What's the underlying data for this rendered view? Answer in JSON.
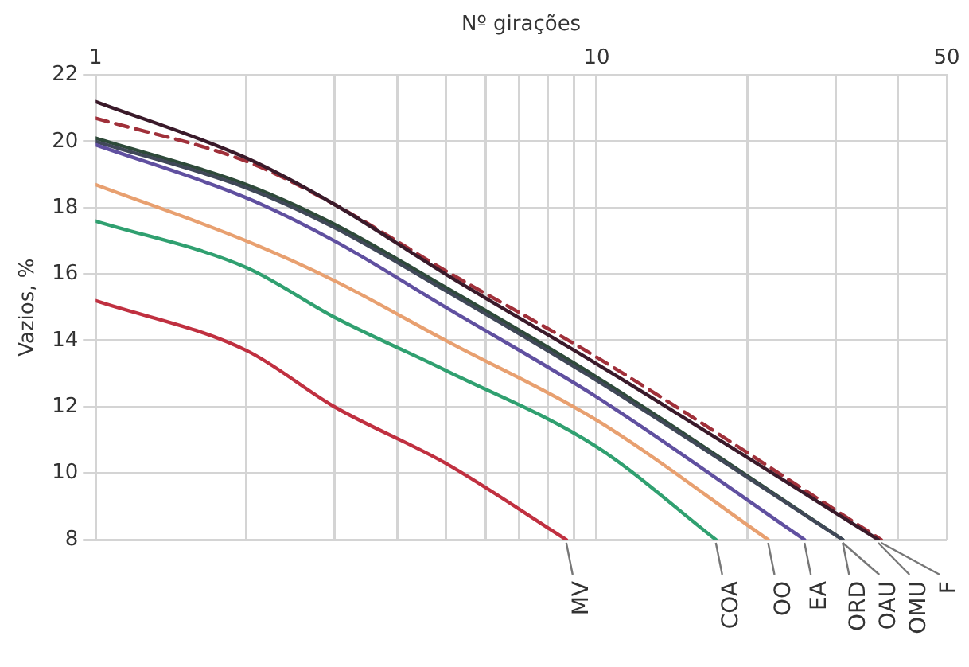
{
  "chart_data": {
    "type": "line",
    "xlabel": "Nº girações",
    "ylabel": "Vazios, %",
    "log": "x",
    "xlim": [
      1,
      50
    ],
    "ylim": [
      8,
      22
    ],
    "xticks": [
      1,
      {
        "value": 2,
        "label": null
      },
      {
        "value": 3,
        "label": null
      },
      {
        "value": 4,
        "label": null
      },
      {
        "value": 5,
        "label": null
      },
      {
        "value": 6,
        "label": null
      },
      {
        "value": 7,
        "label": null
      },
      {
        "value": 8,
        "label": null
      },
      {
        "value": 9,
        "label": null
      },
      10,
      {
        "value": 20,
        "label": null
      },
      {
        "value": 30,
        "label": null
      },
      {
        "value": 40,
        "label": null
      },
      50
    ],
    "yticks": [
      8,
      10,
      12,
      14,
      16,
      18,
      20,
      22
    ],
    "grid": true,
    "legend": false,
    "marker": "none",
    "line_style": "solid",
    "series": [
      {
        "name": "MV",
        "color": "#c03040",
        "x": [
          1,
          2,
          3,
          5,
          8.7
        ],
        "values": [
          15.2,
          13.7,
          12.0,
          10.3,
          8
        ]
      },
      {
        "name": "COA",
        "color": "#30a070",
        "x": [
          1,
          2,
          3,
          5,
          10,
          17.3
        ],
        "values": [
          17.6,
          16.2,
          14.7,
          13.1,
          10.8,
          8
        ]
      },
      {
        "name": "OO",
        "color": "#e8a070",
        "x": [
          1,
          2,
          3,
          5,
          10,
          22
        ],
        "values": [
          18.7,
          17.0,
          15.8,
          14.0,
          11.6,
          8
        ]
      },
      {
        "name": "EA",
        "color": "#6050a0",
        "x": [
          1,
          2,
          3,
          5,
          10,
          26
        ],
        "values": [
          19.9,
          18.3,
          17.0,
          15.0,
          12.3,
          8
        ]
      },
      {
        "name": "ORD",
        "color": "#404858",
        "x": [
          1,
          2,
          3,
          5,
          10,
          31
        ],
        "values": [
          20.0,
          18.6,
          17.4,
          15.5,
          12.8,
          8
        ]
      },
      {
        "name": "OAU",
        "color": "#2e4a3a",
        "x": [
          1,
          2,
          3,
          5,
          10,
          31
        ],
        "values": [
          20.1,
          18.7,
          17.5,
          15.6,
          12.9,
          8
        ]
      },
      {
        "name": "OMU",
        "color": "#3a1a2a",
        "x": [
          1,
          2,
          3,
          5,
          10,
          36.5
        ],
        "values": [
          21.2,
          19.5,
          18.1,
          16.0,
          13.3,
          8
        ]
      },
      {
        "name": "F",
        "color": "#a0303a",
        "line_style": "dashed",
        "x": [
          1,
          2,
          3,
          5,
          10,
          37
        ],
        "values": [
          20.7,
          19.4,
          18.1,
          16.1,
          13.5,
          8
        ]
      }
    ]
  }
}
